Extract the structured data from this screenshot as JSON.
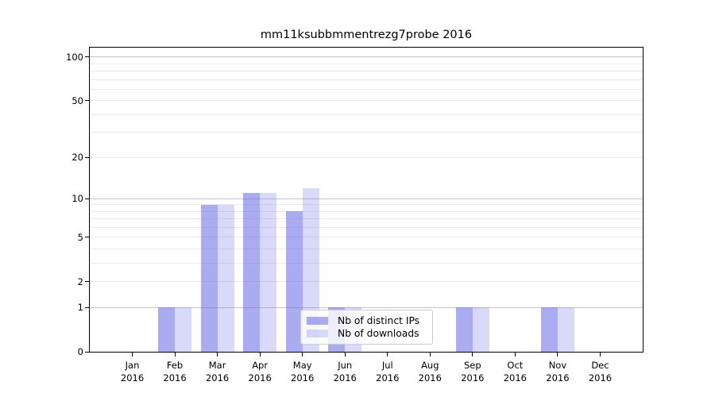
{
  "title": "mm11ksubbmmentrezg7probe 2016",
  "chart_data": {
    "type": "bar",
    "title": "mm11ksubbmmentrezg7probe 2016",
    "categories": [
      "Jan",
      "Feb",
      "Mar",
      "Apr",
      "May",
      "Jun",
      "Jul",
      "Aug",
      "Sep",
      "Oct",
      "Nov",
      "Dec"
    ],
    "category_year": "2016",
    "series": [
      {
        "name": "Nb of distinct IPs",
        "color": "rgba(102,102,232,0.55)",
        "values": [
          0,
          1,
          9,
          11,
          8,
          1,
          0,
          0,
          1,
          0,
          1,
          0
        ]
      },
      {
        "name": "Nb of downloads",
        "color": "rgba(102,102,232,0.25)",
        "values": [
          0,
          1,
          9,
          11,
          12,
          1,
          0,
          0,
          1,
          0,
          1,
          0
        ]
      }
    ],
    "xlabel": "",
    "ylabel": "",
    "y_scale": "log10(1+y)",
    "ylim": [
      0,
      116
    ],
    "y_ticks": [
      0,
      1,
      2,
      5,
      10,
      20,
      50,
      100
    ],
    "y_major_gridlines": [
      1,
      10,
      100
    ],
    "y_minor_gridlines": [
      2,
      3,
      4,
      5,
      6,
      7,
      8,
      9,
      20,
      30,
      40,
      50,
      60,
      70,
      80,
      90
    ],
    "grid": true,
    "legend": {
      "position": "lower center",
      "entries": [
        "Nb of distinct IPs",
        "Nb of downloads"
      ]
    }
  },
  "colors": {
    "background": "#ffffff",
    "axis": "#000000",
    "grid_major": "#c6c6c6",
    "grid_minor": "#eaeaea",
    "legend_border": "#cccccc"
  }
}
